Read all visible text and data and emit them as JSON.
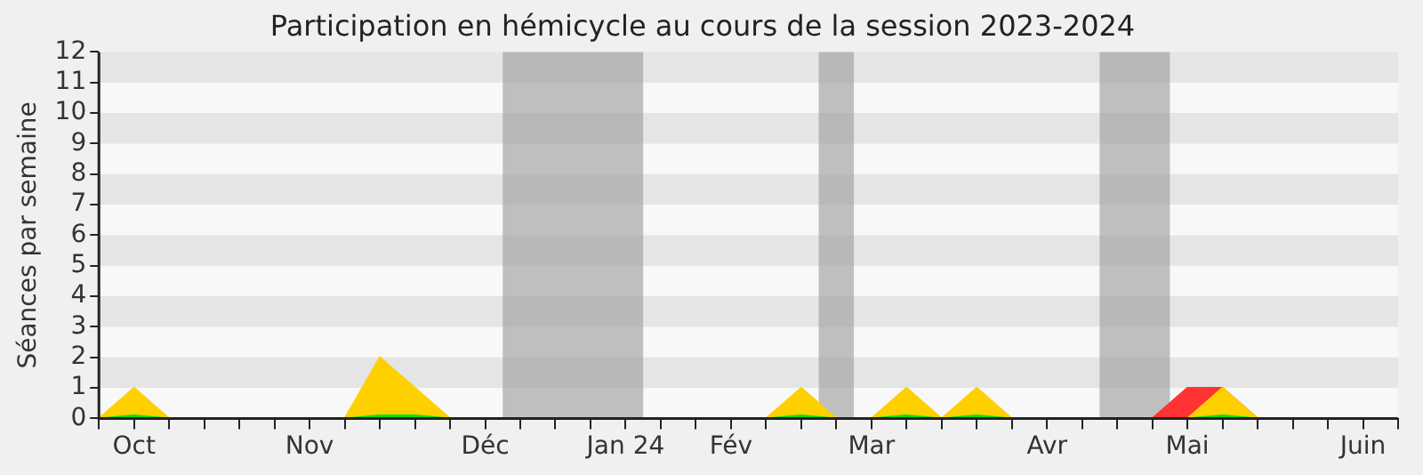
{
  "chart_data": {
    "type": "area",
    "title": "Participation en hémicycle au cours de la session 2023-2024",
    "ylabel": "Séances par semaine",
    "categories": [
      null,
      "Oct",
      null,
      null,
      null,
      null,
      "Nov",
      null,
      null,
      null,
      null,
      "Déc",
      null,
      null,
      null,
      "Jan 24",
      null,
      null,
      "Fév",
      null,
      null,
      null,
      "Mar",
      null,
      null,
      null,
      null,
      "Avr",
      null,
      null,
      null,
      "Mai",
      null,
      null,
      null,
      null,
      "Juin",
      null
    ],
    "ylim": [
      0,
      12
    ],
    "yticks": [
      0,
      1,
      2,
      3,
      4,
      5,
      6,
      7,
      8,
      9,
      10,
      11,
      12
    ],
    "series": [
      {
        "color": "#ff3333",
        "values": [
          0,
          0,
          0,
          0,
          0,
          0,
          0,
          0,
          0,
          0,
          0,
          0,
          0,
          0,
          0,
          0,
          0,
          0,
          0,
          0,
          0,
          0,
          0,
          0,
          0,
          0,
          0,
          0,
          0,
          0,
          0,
          1,
          1,
          0,
          0,
          0,
          0,
          0
        ]
      },
      {
        "color": "#ffd000",
        "values": [
          0,
          1,
          0,
          0,
          0,
          0,
          0,
          0,
          2,
          1,
          0,
          0,
          0,
          0,
          0,
          0,
          0,
          0,
          0,
          0,
          1,
          0,
          0,
          1,
          0,
          1,
          0,
          0,
          0,
          0,
          0,
          0,
          1,
          0,
          0,
          0,
          0,
          0
        ]
      },
      {
        "color": "#00e000",
        "values": [
          0,
          0.1,
          0,
          0,
          0,
          0,
          0,
          0,
          0.1,
          0.1,
          0,
          0,
          0,
          0,
          0,
          0,
          0,
          0,
          0,
          0,
          0.1,
          0,
          0,
          0.1,
          0,
          0.1,
          0,
          0,
          0,
          0,
          0,
          0,
          0.1,
          0,
          0,
          0,
          0,
          0
        ]
      }
    ],
    "legend": false
  }
}
